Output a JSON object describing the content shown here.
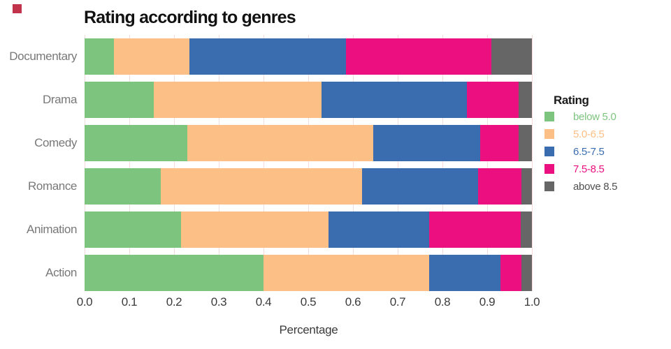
{
  "title": "Rating according to genres",
  "indicator": {
    "color": "#c0334b"
  },
  "colors": {
    "background": "#ffffff",
    "gridline": "#f6dbdb",
    "category_label": "#787878",
    "tick_label": "#3b3b3b",
    "axis_label": "#3b3b3b",
    "title": "#111111",
    "legend_title": "#1a1a1a"
  },
  "chart_data": {
    "type": "bar",
    "orientation": "horizontal-stacked",
    "title": "Rating according to genres",
    "xlabel": "Percentage",
    "ylabel": "",
    "xlim": [
      0.0,
      1.0
    ],
    "grid": "vertical-light",
    "legend_position": "right",
    "legend_title": "Rating",
    "categories": [
      "Documentary",
      "Drama",
      "Comedy",
      "Romance",
      "Animation",
      "Action"
    ],
    "xticks": [
      0.0,
      0.1,
      0.2,
      0.3,
      0.4,
      0.5,
      0.6,
      0.7,
      0.8,
      0.9,
      1.0
    ],
    "xtick_labels": [
      "0.0",
      "0.1",
      "0.2",
      "0.3",
      "0.4",
      "0.5",
      "0.6",
      "0.7",
      "0.8",
      "0.9",
      "1.0"
    ],
    "series": [
      {
        "name": "below 5.0",
        "color": "#7dc57e",
        "label_color": "#7dc57e",
        "values": [
          0.065,
          0.155,
          0.23,
          0.17,
          0.215,
          0.4
        ]
      },
      {
        "name": "5.0-6.5",
        "color": "#fcbf85",
        "label_color": "#fcbf85",
        "values": [
          0.17,
          0.375,
          0.415,
          0.45,
          0.33,
          0.37
        ]
      },
      {
        "name": "6.5-7.5",
        "color": "#3a6cb0",
        "label_color": "#3a6cb0",
        "values": [
          0.35,
          0.325,
          0.24,
          0.26,
          0.225,
          0.16
        ]
      },
      {
        "name": "7.5-8.5",
        "color": "#ec0f80",
        "label_color": "#ec0f80",
        "values": [
          0.325,
          0.115,
          0.085,
          0.097,
          0.205,
          0.047
        ]
      },
      {
        "name": "above 8.5",
        "color": "#666666",
        "label_color": "#4f4f4f",
        "values": [
          0.09,
          0.03,
          0.03,
          0.023,
          0.025,
          0.023
        ]
      }
    ]
  }
}
